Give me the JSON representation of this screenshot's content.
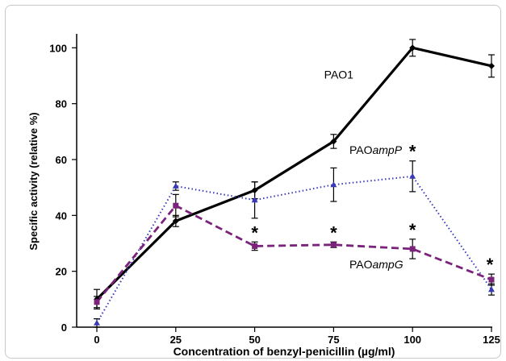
{
  "chart_data": {
    "type": "line",
    "xlabel": "Concentration of benzyl-penicillin (µg/ml)",
    "ylabel": "Specific activity (relative %)",
    "xlim": [
      0,
      125
    ],
    "ylim": [
      0,
      105
    ],
    "x": [
      0,
      25,
      50,
      75,
      100,
      125
    ],
    "xticks": [
      "0",
      "25",
      "50",
      "75",
      "100",
      "125"
    ],
    "yticks": [
      "0",
      "20",
      "40",
      "60",
      "80",
      "100"
    ],
    "grid": false,
    "series": [
      {
        "name": "PAO1",
        "label_html": "PAO1",
        "color": "#000000",
        "style": "solid",
        "marker": "diamond",
        "values": [
          10,
          38,
          49,
          66.5,
          100,
          93.5
        ],
        "errors": [
          3.5,
          2,
          3,
          2.5,
          3,
          4
        ],
        "stars": [
          false,
          false,
          false,
          false,
          false,
          false
        ]
      },
      {
        "name": "PAOampP",
        "label_prefix": "PAO",
        "label_italic": "ampP",
        "color": "#3a3ab8",
        "style": "dotted",
        "marker": "triangle",
        "values": [
          1.5,
          50.5,
          45.5,
          51,
          54,
          13.5
        ],
        "errors": [
          1.5,
          1.5,
          6.5,
          6,
          5.5,
          2
        ],
        "stars": [
          false,
          false,
          false,
          false,
          true,
          false
        ]
      },
      {
        "name": "PAOampG",
        "label_prefix": "PAO",
        "label_italic": "ampG",
        "color": "#7b237b",
        "style": "dashed",
        "marker": "square",
        "values": [
          9,
          43.5,
          29,
          29.5,
          28,
          17
        ],
        "errors": [
          2,
          4,
          1.5,
          1,
          3.5,
          2
        ],
        "stars": [
          false,
          false,
          true,
          true,
          true,
          true
        ]
      }
    ],
    "significance_symbol": "*"
  }
}
